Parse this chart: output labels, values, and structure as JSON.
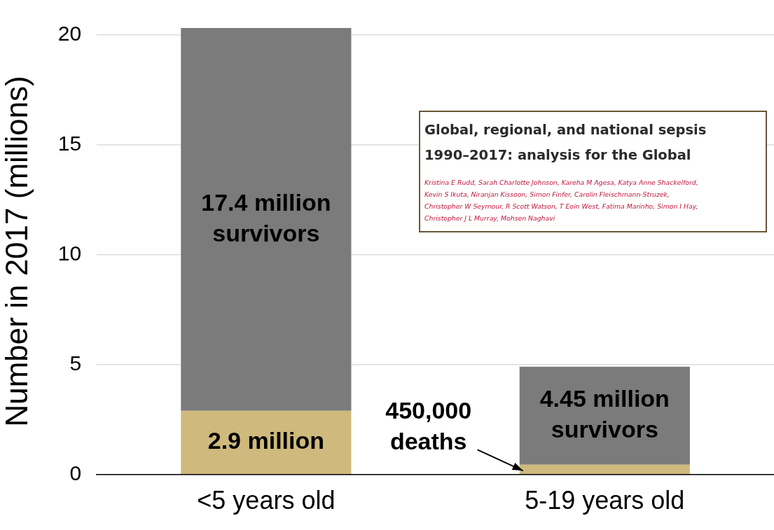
{
  "chart_data": {
    "type": "bar",
    "stacked": true,
    "ylabel": "Number in 2017 (millions)",
    "categories": [
      "<5 years old",
      "5-19 years old"
    ],
    "series": [
      {
        "color": "#cfb97c",
        "values": [
          2.9,
          0.45
        ],
        "value_labels": [
          "2.9 million",
          null
        ]
      },
      {
        "color": "#7b7b7b",
        "values": [
          17.4,
          4.45
        ],
        "value_labels": [
          "17.4 million survivors",
          "4.45 million survivors"
        ]
      }
    ],
    "ylim": [
      0,
      20.3
    ],
    "yticks": [
      0,
      5,
      10,
      15,
      20
    ],
    "grid": "y",
    "legend": false,
    "annotations": [
      "Global, regional, and national sepsis",
      "1990–2017: analysis for the Global",
      "Kristina E Rudd, Sarah Charlotte Johnson, Kareha M Agesa, Katya Anne Shackelford,",
      "Kevin S Ikuta, Niranjan Kissoon, Simon Finfer, Carolin Fleischmann-Struzek,",
      "Christopher W Seymour, R Scott Watson, T Eoin West, Fatima Marinho, Simon I Hay,",
      "Christopher J L Murray, Mohsen Naghavi",
      "450,000 deaths"
    ]
  }
}
